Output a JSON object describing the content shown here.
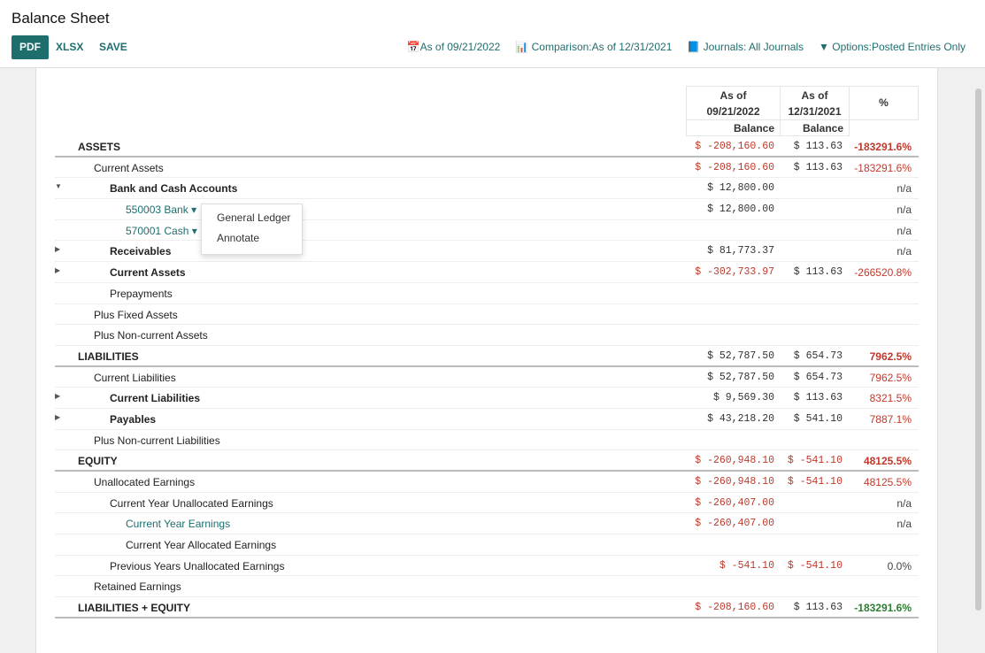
{
  "header": {
    "title": "Balance Sheet",
    "pdf": "PDF",
    "xlsx": "XLSX",
    "save": "SAVE",
    "filters": [
      "📅As of 09/21/2022",
      "📊 Comparison:As of 12/31/2021",
      "📘 Journals: All Journals",
      "▼ Options:Posted Entries Only"
    ]
  },
  "columns": {
    "c1": [
      "As of",
      "09/21/2022",
      "Balance"
    ],
    "c2": [
      "As of",
      "12/31/2021",
      "Balance"
    ],
    "c3": "%"
  },
  "rows": [
    {
      "label": "ASSETS",
      "level": 0,
      "bold": true,
      "sec": true,
      "v1": "$ -208,160.60",
      "v1neg": true,
      "v2": "$ 113.63",
      "pct": "-183291.6%",
      "pctColor": "#c0392b",
      "pctBold": true
    },
    {
      "label": "Current Assets",
      "level": 1,
      "v1": "$ -208,160.60",
      "v1neg": true,
      "v2": "$ 113.63",
      "pct": "-183291.6%",
      "pctColor": "#c0392b"
    },
    {
      "label": "Bank and Cash Accounts",
      "level": 2,
      "bold": true,
      "caret": "down",
      "v1": "$ 12,800.00",
      "pct": "n/a"
    },
    {
      "label": "550003 Bank ▾",
      "level": 3,
      "link": true,
      "v1": "$ 12,800.00",
      "pct": "n/a"
    },
    {
      "label": "570001 Cash ▾",
      "level": 3,
      "link": true,
      "pct": "n/a"
    },
    {
      "label": "Receivables",
      "level": 2,
      "bold": true,
      "caret": "right",
      "v1": "$ 81,773.37",
      "pct": "n/a"
    },
    {
      "label": "Current Assets",
      "level": 2,
      "bold": true,
      "caret": "right",
      "v1": "$ -302,733.97",
      "v1neg": true,
      "v2": "$ 113.63",
      "pct": "-266520.8%",
      "pctColor": "#c0392b"
    },
    {
      "label": "Prepayments",
      "level": 2
    },
    {
      "label": "Plus Fixed Assets",
      "level": 1
    },
    {
      "label": "Plus Non-current Assets",
      "level": 1
    },
    {
      "label": "LIABILITIES",
      "level": 0,
      "bold": true,
      "sec": true,
      "v1": "$ 52,787.50",
      "v2": "$ 654.73",
      "pct": "7962.5%",
      "pctColor": "#c0392b",
      "pctBold": true
    },
    {
      "label": "Current Liabilities",
      "level": 1,
      "v1": "$ 52,787.50",
      "v2": "$ 654.73",
      "pct": "7962.5%",
      "pctColor": "#c0392b"
    },
    {
      "label": "Current Liabilities",
      "level": 2,
      "bold": true,
      "caret": "right",
      "v1": "$ 9,569.30",
      "v2": "$ 113.63",
      "pct": "8321.5%",
      "pctColor": "#c0392b"
    },
    {
      "label": "Payables",
      "level": 2,
      "bold": true,
      "caret": "right",
      "v1": "$ 43,218.20",
      "v2": "$ 541.10",
      "pct": "7887.1%",
      "pctColor": "#c0392b"
    },
    {
      "label": "Plus Non-current Liabilities",
      "level": 1
    },
    {
      "label": "EQUITY",
      "level": 0,
      "bold": true,
      "sec": true,
      "v1": "$ -260,948.10",
      "v1neg": true,
      "v2": "$ -541.10",
      "v2neg": true,
      "pct": "48125.5%",
      "pctColor": "#c0392b",
      "pctBold": true
    },
    {
      "label": "Unallocated Earnings",
      "level": 1,
      "v1": "$ -260,948.10",
      "v1neg": true,
      "v2": "$ -541.10",
      "v2neg": true,
      "pct": "48125.5%",
      "pctColor": "#c0392b"
    },
    {
      "label": "Current Year Unallocated Earnings",
      "level": 2,
      "v1": "$ -260,407.00",
      "v1neg": true,
      "pct": "n/a"
    },
    {
      "label": "Current Year Earnings",
      "level": 3,
      "link": true,
      "v1": "$ -260,407.00",
      "v1neg": true,
      "pct": "n/a"
    },
    {
      "label": "Current Year Allocated Earnings",
      "level": 3
    },
    {
      "label": "Previous Years Unallocated Earnings",
      "level": 2,
      "v1": "$ -541.10",
      "v1neg": true,
      "v2": "$ -541.10",
      "v2neg": true,
      "pct": "0.0%"
    },
    {
      "label": "Retained Earnings",
      "level": 1
    },
    {
      "label": "LIABILITIES + EQUITY",
      "level": 0,
      "bold": true,
      "sec": true,
      "v1": "$ -208,160.60",
      "v1neg": true,
      "v2": "$ 113.63",
      "pct": "-183291.6%",
      "pctColor": "#2e7d32",
      "pctBold": true
    }
  ],
  "menu": [
    "General Ledger",
    "Annotate"
  ]
}
